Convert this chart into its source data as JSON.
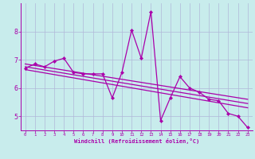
{
  "title": "",
  "xlabel": "Windchill (Refroidissement éolien,°C)",
  "bg_color": "#c8ecec",
  "grid_color": "#b0b8d8",
  "line_color": "#aa00aa",
  "xlim": [
    -0.5,
    23.5
  ],
  "ylim": [
    4.5,
    9.0
  ],
  "xticks": [
    0,
    1,
    2,
    3,
    4,
    5,
    6,
    7,
    8,
    9,
    10,
    11,
    12,
    13,
    14,
    15,
    16,
    17,
    18,
    19,
    20,
    21,
    22,
    23
  ],
  "yticks": [
    5,
    6,
    7,
    8
  ],
  "series1_x": [
    0,
    1,
    2,
    3,
    4,
    5,
    6,
    7,
    8,
    9,
    10,
    11,
    12,
    13,
    14,
    15,
    16,
    17,
    18,
    19,
    20,
    21,
    22,
    23
  ],
  "series1_y": [
    6.7,
    6.85,
    6.75,
    6.95,
    7.05,
    6.55,
    6.5,
    6.5,
    6.5,
    5.65,
    6.55,
    8.05,
    7.05,
    8.7,
    4.85,
    5.65,
    6.4,
    6.0,
    5.85,
    5.6,
    5.55,
    5.1,
    5.0,
    4.6
  ],
  "trend1_x": [
    0,
    23
  ],
  "trend1_y": [
    6.75,
    5.45
  ],
  "trend2_x": [
    0,
    23
  ],
  "trend2_y": [
    6.85,
    5.6
  ],
  "trend3_x": [
    0,
    23
  ],
  "trend3_y": [
    6.65,
    5.3
  ],
  "line_width": 0.9,
  "marker_size": 2.2
}
